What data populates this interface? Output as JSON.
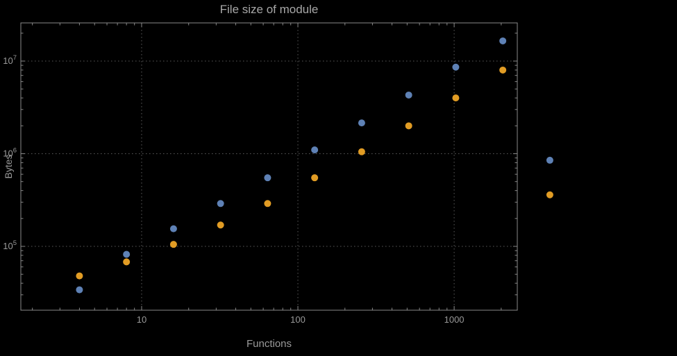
{
  "window": {
    "background_color": "#000000",
    "text_color": "#9a9a9a",
    "frame_color": "#8a8a8a",
    "grid_color": "#5d5d5d"
  },
  "chart_data": {
    "type": "scatter",
    "title": "File size of module",
    "xlabel": "Functions",
    "ylabel": "Bytes",
    "x_scale": "log",
    "y_scale": "log",
    "grid": "dotted",
    "legend": "none",
    "x_tick_labels": [
      "10",
      "100",
      "1000"
    ],
    "x_tick_values": [
      10,
      100,
      1000
    ],
    "y_tick_values": [
      100000,
      1000000,
      10000000
    ],
    "y_tick_exponents": [
      5,
      6,
      7
    ],
    "x_range_log": [
      0.227,
      3.404
    ],
    "y_range_log": [
      4.311,
      7.412
    ],
    "series": [
      {
        "name": "series-1-blue",
        "color": "#5e81b5",
        "points": [
          [
            4,
            34000
          ],
          [
            8,
            82000
          ],
          [
            16,
            155000
          ],
          [
            32,
            290000
          ],
          [
            64,
            550000
          ],
          [
            128,
            1100000
          ],
          [
            256,
            2150000
          ],
          [
            512,
            4300000
          ],
          [
            1024,
            8600000
          ],
          [
            2048,
            16500000
          ],
          [
            4096,
            850000
          ]
        ]
      },
      {
        "name": "series-2-orange",
        "color": "#e19c24",
        "points": [
          [
            4,
            48000
          ],
          [
            8,
            68000
          ],
          [
            16,
            105000
          ],
          [
            32,
            170000
          ],
          [
            64,
            290000
          ],
          [
            128,
            550000
          ],
          [
            256,
            1050000
          ],
          [
            512,
            2000000
          ],
          [
            1024,
            4000000
          ],
          [
            2048,
            8000000
          ],
          [
            4096,
            360000
          ]
        ]
      }
    ]
  }
}
